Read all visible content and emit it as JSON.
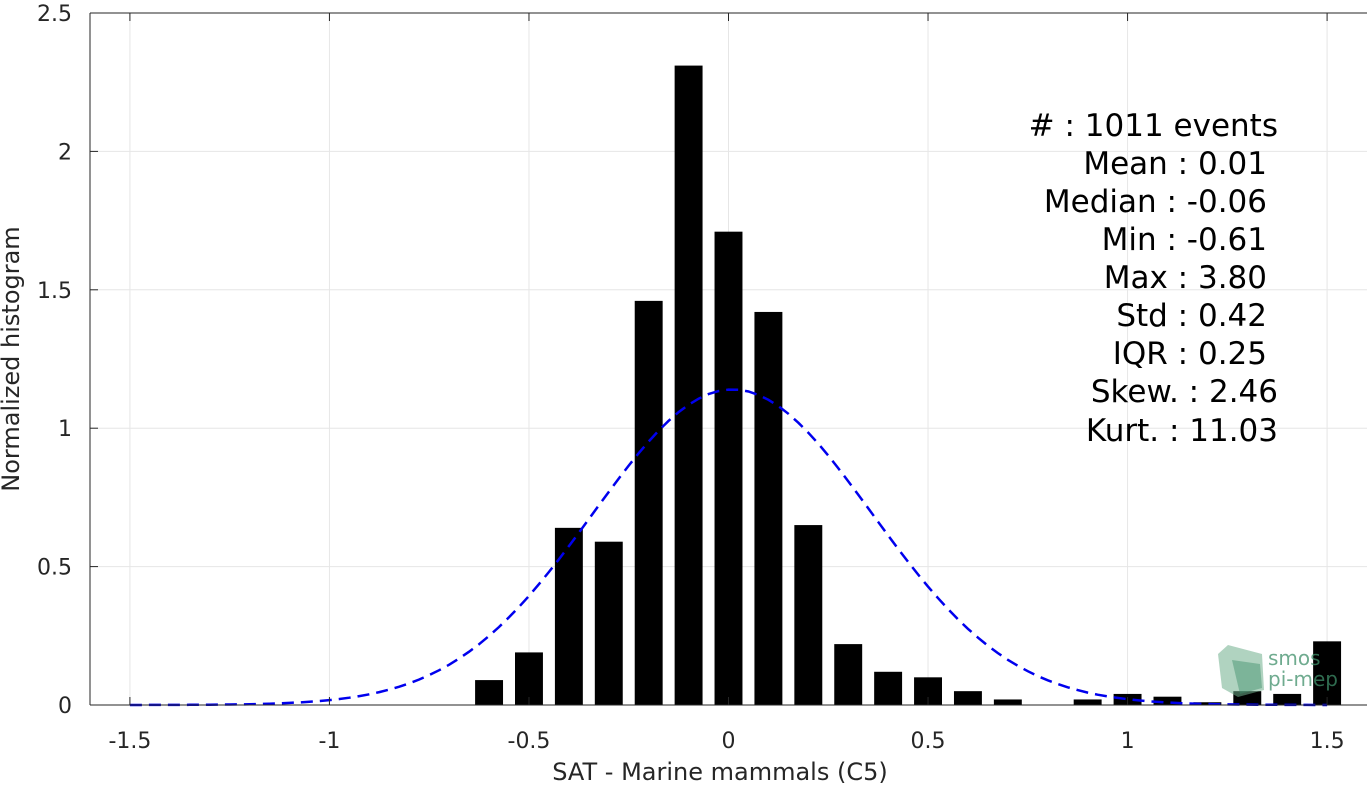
{
  "chart_data": {
    "type": "bar",
    "xlabel": "SAT - Marine mammals (C5)",
    "ylabel": "Normalized histogram",
    "xlim": [
      -1.6,
      1.6
    ],
    "ylim": [
      0,
      2.5
    ],
    "xticks": [
      -1.5,
      -1,
      -0.5,
      0,
      0.5,
      1,
      1.5
    ],
    "xtick_labels": [
      "-1.5",
      "-1",
      "-0.5",
      "0",
      "0.5",
      "1",
      "1.5"
    ],
    "yticks": [
      0,
      0.5,
      1,
      1.5,
      2,
      2.5
    ],
    "ytick_labels": [
      "0",
      "0.5",
      "1",
      "1.5",
      "2",
      "2.5"
    ],
    "grid": true,
    "bar_width": 0.07,
    "bars": {
      "x": [
        -0.6,
        -0.5,
        -0.4,
        -0.3,
        -0.2,
        -0.1,
        0.0,
        0.1,
        0.2,
        0.3,
        0.4,
        0.5,
        0.6,
        0.7,
        0.9,
        1.0,
        1.1,
        1.2,
        1.3,
        1.4,
        1.5
      ],
      "values": [
        0.09,
        0.19,
        0.64,
        0.59,
        1.46,
        2.31,
        1.71,
        1.42,
        0.65,
        0.22,
        0.12,
        0.1,
        0.05,
        0.02,
        0.02,
        0.04,
        0.03,
        0.01,
        0.05,
        0.04,
        0.23
      ],
      "color": "#000000"
    },
    "fit_curve": {
      "style": "dashed",
      "color": "#0000ee",
      "mean": 0.01,
      "std": 0.35,
      "x_range": [
        -1.5,
        1.5
      ]
    }
  },
  "stats": {
    "count": "#  : 1011 events",
    "mean": "Mean : 0.01",
    "median": "Median : -0.06",
    "min": "Min : -0.61",
    "max": "Max : 3.80",
    "std": "Std : 0.42",
    "iqr": "IQR : 0.25",
    "skew": "Skew. : 2.46",
    "kurt": "Kurt. : 11.03"
  },
  "logo": {
    "line1": "smos",
    "line2": "pi-mep"
  }
}
